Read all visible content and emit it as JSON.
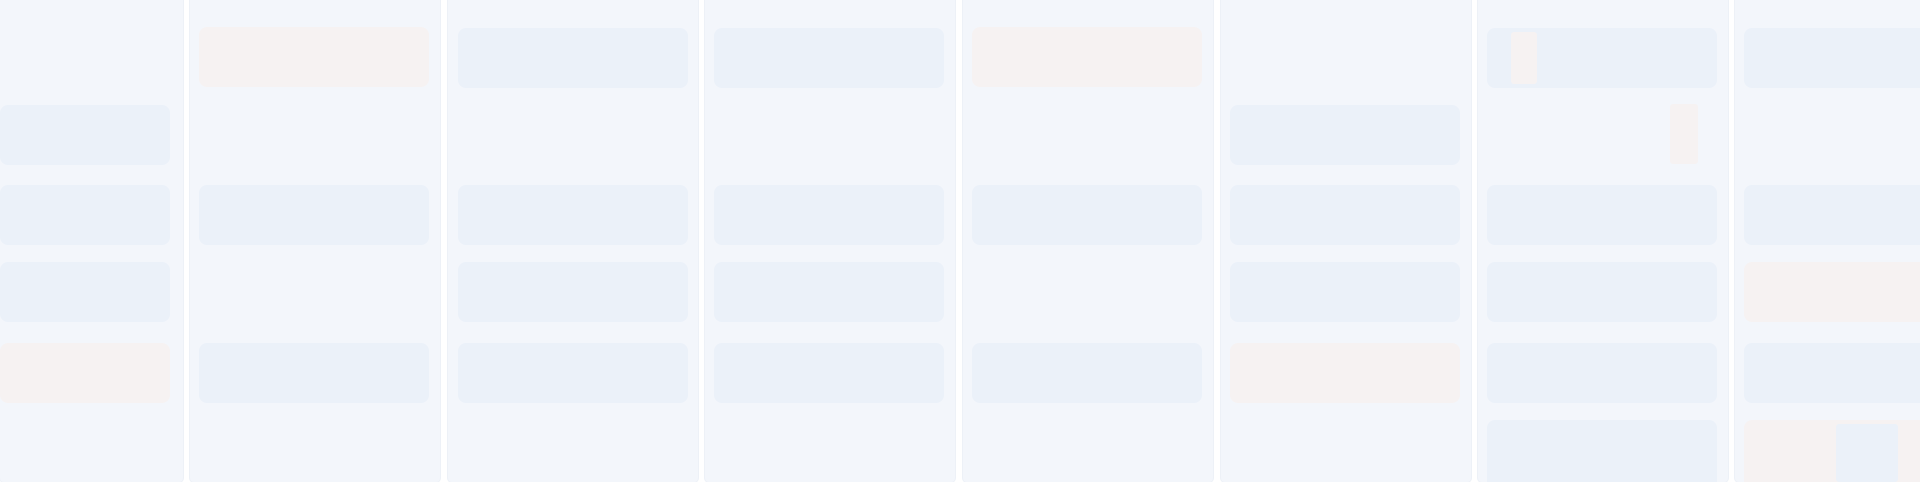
{
  "board": {
    "title": "",
    "columns": [
      {
        "name": "",
        "cards": [
          {
            "tone": "cool"
          },
          {
            "tone": "cool"
          },
          {
            "tone": "cool"
          },
          {
            "tone": "warm"
          }
        ]
      },
      {
        "name": "",
        "cards": [
          {
            "tone": "warm"
          },
          {
            "tone": "cool"
          },
          {
            "tone": "cool"
          }
        ]
      },
      {
        "name": "",
        "cards": [
          {
            "tone": "cool"
          },
          {
            "tone": "cool"
          },
          {
            "tone": "cool"
          },
          {
            "tone": "cool"
          }
        ]
      },
      {
        "name": "",
        "cards": [
          {
            "tone": "cool"
          },
          {
            "tone": "cool"
          },
          {
            "tone": "cool"
          },
          {
            "tone": "cool"
          }
        ]
      },
      {
        "name": "",
        "cards": [
          {
            "tone": "warm"
          },
          {
            "tone": "cool"
          },
          {
            "tone": "cool"
          }
        ]
      },
      {
        "name": "",
        "cards": [
          {
            "tone": "cool"
          },
          {
            "tone": "cool"
          },
          {
            "tone": "cool"
          },
          {
            "tone": "warm"
          }
        ]
      },
      {
        "name": "",
        "cards": [
          {
            "tone": "cool"
          },
          {
            "tone": "cool"
          },
          {
            "tone": "cool"
          },
          {
            "tone": "cool"
          },
          {
            "tone": "cool"
          }
        ]
      },
      {
        "name": "",
        "cards": [
          {
            "tone": "cool"
          },
          {
            "tone": "cool"
          },
          {
            "tone": "warm"
          },
          {
            "tone": "cool"
          },
          {
            "tone": "warm"
          }
        ]
      }
    ]
  },
  "colors": {
    "column_bg": "#f3f6fb",
    "card_cool": "#edf3f9",
    "card_warm": "#f6f2f2",
    "page_bg": "#ffffff"
  }
}
